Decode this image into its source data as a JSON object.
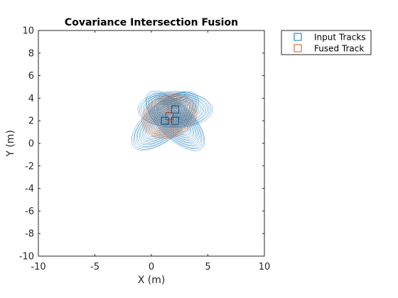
{
  "chart_data": {
    "type": "line",
    "title": "Covariance Intersection Fusion",
    "xlabel": "X (m)",
    "ylabel": "Y (m)",
    "xlim": [
      -10,
      10
    ],
    "ylim": [
      -10,
      10
    ],
    "xticks": [
      -10,
      -5,
      0,
      5,
      10
    ],
    "yticks": [
      -10,
      -8,
      -6,
      -4,
      -2,
      0,
      2,
      4,
      6,
      8,
      10
    ],
    "grid": false,
    "legend_position": "outside-top-right",
    "series": [
      {
        "name": "Input Tracks",
        "color": "#0072BD",
        "marker": "square",
        "tracks": [
          {
            "center": [
              1.2,
              2.0
            ],
            "semi_axes": [
              3.6,
              1.6
            ],
            "angle_deg": 40
          },
          {
            "center": [
              2.1,
              2.0
            ],
            "semi_axes": [
              3.4,
              1.5
            ],
            "angle_deg": -45
          },
          {
            "center": [
              2.1,
              3.0
            ],
            "semi_axes": [
              3.3,
              1.6
            ],
            "angle_deg": 0
          }
        ]
      },
      {
        "name": "Fused Track",
        "color": "#D95319",
        "marker": "square",
        "tracks": [
          {
            "center": [
              1.6,
              2.4
            ],
            "semi_axes": [
              2.5,
              1.9
            ],
            "angle_deg": 20
          }
        ]
      }
    ]
  }
}
